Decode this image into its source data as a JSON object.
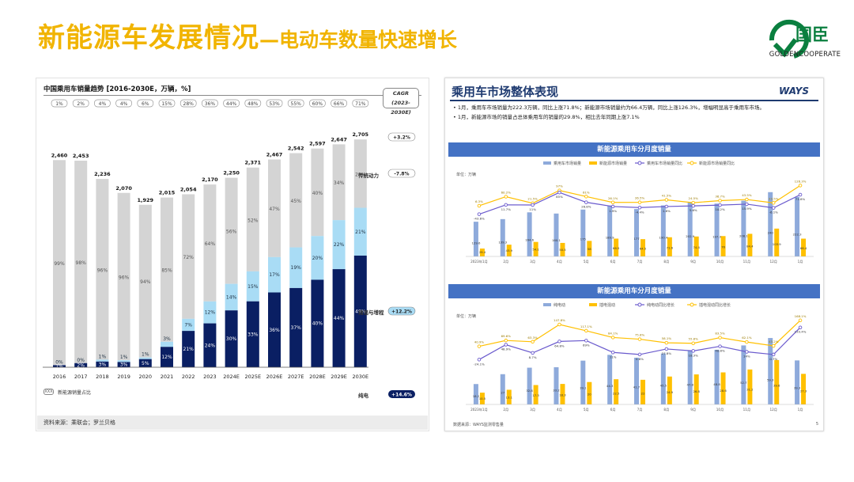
{
  "slide": {
    "title_main": "新能源车发展情况",
    "title_dash": "—",
    "title_sub": "电动车数量快速增长",
    "logo_cn": "国臣",
    "logo_en": "GOLDENCOOPERATE"
  },
  "left_panel": {
    "title": "中国乘用车销量趋势 [2016-2030E，万辆，%]",
    "cagr_label": "CAGR",
    "cagr_range": "(2023-2030E)",
    "legend_box": "XXX",
    "legend_text": "新能源销量占比",
    "source": "资料来源：乘联会；罗兰贝格"
  },
  "chart_data": [
    {
      "type": "bar",
      "title": "中国乘用车销量趋势 [2016-2030E，万辆，%]",
      "categories": [
        "2016",
        "2017",
        "2018",
        "2019",
        "2020",
        "2021",
        "2022",
        "2023",
        "2024E",
        "2025E",
        "2026E",
        "2027E",
        "2028E",
        "2029E",
        "2030E"
      ],
      "totals": [
        2460,
        2453,
        2236,
        2070,
        1929,
        2015,
        2054,
        2170,
        2250,
        2371,
        2467,
        2542,
        2597,
        2647,
        2705
      ],
      "nev_share": [
        "1%",
        "2%",
        "4%",
        "4%",
        "6%",
        "15%",
        "28%",
        "36%",
        "44%",
        "48%",
        "53%",
        "55%",
        "60%",
        "66%",
        "71%"
      ],
      "series": [
        {
          "name": "纯电",
          "share": [
            1,
            2,
            3,
            3,
            5,
            12,
            21,
            24,
            30,
            33,
            36,
            37,
            40,
            44,
            49
          ],
          "color": "#0a1f63"
        },
        {
          "name": "插混与增程",
          "share": [
            0,
            0,
            1,
            1,
            1,
            3,
            7,
            12,
            14,
            15,
            17,
            19,
            20,
            22,
            21
          ],
          "color": "#a9dcf5"
        },
        {
          "name": "传统动力",
          "share": [
            99,
            98,
            96,
            96,
            94,
            85,
            72,
            64,
            56,
            52,
            47,
            45,
            40,
            34,
            29
          ],
          "color": "#d4d4d4"
        }
      ],
      "labels_shown": {
        "bev": [
          "1%",
          "2%",
          "3%",
          "3%",
          "5%",
          "12%",
          "21%",
          "24%",
          "30%",
          "33%",
          "36%",
          "37%",
          "40%",
          "44%",
          "49%"
        ],
        "phev": [
          "0%",
          "0%",
          "1%",
          "1%",
          "1%",
          "3%",
          "7%",
          "12%",
          "14%",
          "15%",
          "17%",
          "19%",
          "20%",
          "22%",
          "21%"
        ],
        "ice": [
          "99%",
          "98%",
          "96%",
          "96%",
          "94%",
          "85%",
          "72%",
          "64%",
          "56%",
          "52%",
          "47%",
          "45%",
          "40%",
          "34%",
          "29%"
        ]
      },
      "cagr": [
        {
          "name": "",
          "value": "+3.2%"
        },
        {
          "name": "传统动力",
          "value": "-7.8%"
        },
        {
          "name": "插混与增程",
          "value": "+12.2%"
        },
        {
          "name": "纯电",
          "value": "+14.6%"
        }
      ],
      "ylim": [
        0,
        2800
      ]
    },
    {
      "type": "bar",
      "title": "新能源乘用车分月度销量",
      "unit": "单位：万辆",
      "categories": [
        "2023年1月",
        "2月",
        "3月",
        "4月",
        "5月",
        "6月",
        "7月",
        "8月",
        "9月",
        "10月",
        "11月",
        "12月",
        "1月"
      ],
      "series": [
        {
          "name": "乘用车市场销量",
          "values": [
            129.6,
            139.3,
            164.6,
            160.1,
            175.0,
            189.9,
            177.0,
            190.4,
            202.9,
            197.3,
            208.1,
            240.0,
            222.3
          ],
          "color": "#8eaadb"
        },
        {
          "name": "新能源市场销量",
          "values": [
            29.4,
            43.9,
            54.1,
            50.5,
            58.0,
            66.5,
            64.5,
            71.6,
            74.4,
            76.0,
            84.4,
            103.9,
            66.4
          ],
          "color": "#ffc000"
        },
        {
          "name": "乘用车市场销量同比",
          "values": [
            -43.6,
            11.7,
            11.0,
            85.0,
            26.8,
            1.9,
            -4.4,
            1.8,
            5.6,
            10.2,
            15.9,
            -6.1,
            71.8
          ],
          "color": "#6a5acd"
        },
        {
          "name": "新能源市场销量同比",
          "values": [
            6.3,
            60.2,
            21.5,
            97.0,
            61.0,
            26.1,
            26.5,
            41.5,
            24.5,
            36.7,
            43.5,
            23.5,
            126.3
          ],
          "color": "#ffc000"
        }
      ]
    },
    {
      "type": "bar",
      "title": "新能源乘用车分月度销量",
      "unit": "单位：万辆",
      "categories": [
        "2023年1月",
        "2月",
        "3月",
        "4月",
        "5月",
        "6月",
        "7月",
        "8月",
        "9月",
        "10月",
        "11月",
        "12月",
        "1月"
      ],
      "series": [
        {
          "name": "纯电动",
          "values": [
            18.2,
            27.0,
            32.8,
            33.2,
            39.1,
            44.3,
            41.7,
            45.5,
            47.8,
            48.8,
            52.7,
            59.3,
            39.3
          ],
          "color": "#8eaadb"
        },
        {
          "name": "插电混动",
          "values": [
            10.5,
            13.1,
            17.3,
            18.3,
            20.0,
            22.5,
            22.0,
            24.9,
            26.8,
            28.6,
            31.2,
            39.6,
            27.3
          ],
          "color": "#ffc000"
        },
        {
          "name": "纯电动同比增长",
          "values": [
            -24.1,
            48.9,
            8.7,
            64.8,
            69.0,
            11.0,
            0.8,
            27.8,
            18.3,
            40.8,
            14.0,
            0.7,
            133.4
          ],
          "color": "#6a5acd"
        },
        {
          "name": "插电混动同比增长",
          "values": [
            40.9,
            69.6,
            63.3,
            147.8,
            117.1,
            84.1,
            75.8,
            58.1,
            55.8,
            83.5,
            62.1,
            43.2,
            168.1
          ],
          "color": "#ffc000"
        }
      ]
    }
  ],
  "right_panel": {
    "title": "乘用车市场整体表现",
    "brand": "WAYS",
    "bullets": [
      "1月，乘用车市场销量为222.3万辆，同比上涨71.8%；新能源市场销量约为66.4万辆，同比上涨126.3%，增幅明显高于乘用车市场。",
      "1月，新能源市场的销量占总体乘用车的销量的29.8%，相比去年同期上涨7.1%"
    ],
    "chart1_header": "新能源乘用车分月度销量",
    "chart2_header": "新能源乘用车分月度销量",
    "source": "数据来源：WAYS监测零售量",
    "page_no": "5"
  }
}
